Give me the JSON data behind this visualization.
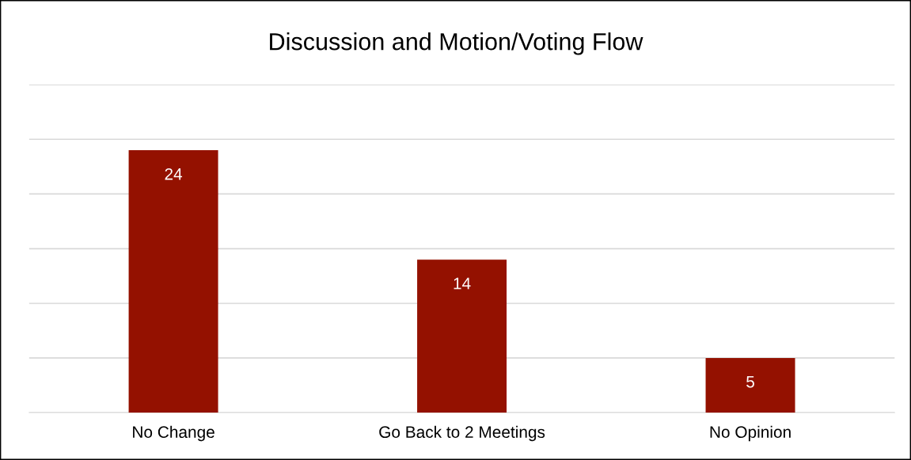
{
  "chart_data": {
    "type": "bar",
    "title": "Discussion and Motion/Voting Flow",
    "categories": [
      "No Change",
      "Go Back to 2 Meetings",
      "No Opinion"
    ],
    "values": [
      24,
      14,
      5
    ],
    "color": "#941100",
    "ylim": [
      0,
      30
    ],
    "yticks": [
      {
        "value": 0,
        "label": null
      },
      {
        "value": 5,
        "label": null
      },
      {
        "value": 10,
        "label": null
      },
      {
        "value": 15,
        "label": null
      },
      {
        "value": 20,
        "label": null
      },
      {
        "value": 25,
        "label": null
      },
      {
        "value": 30,
        "label": null
      }
    ],
    "tick_labels": "x",
    "grid": "y",
    "data_labels": true,
    "legend": false
  }
}
